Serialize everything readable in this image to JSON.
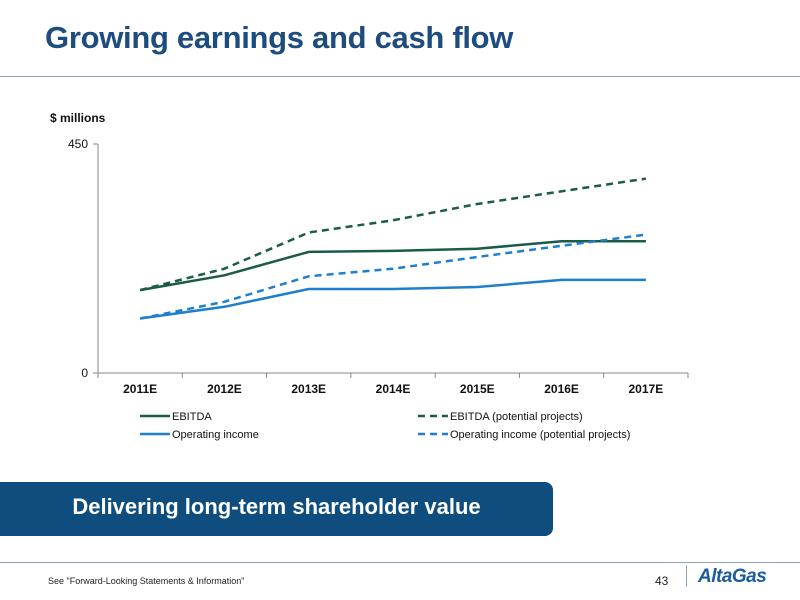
{
  "slide": {
    "title": "Growing earnings and cash flow",
    "banner": "Delivering long-term shareholder value",
    "footer_note": "See \"Forward-Looking Statements & Information\"",
    "page_number": "43",
    "logo_text": "AltaGas"
  },
  "colors": {
    "title": "#1e4c7e",
    "banner_bg": "#0f4d7e",
    "ebitda": "#1a5c48",
    "operating_income": "#1f7fcf"
  },
  "chart_data": {
    "type": "line",
    "unit_label": "$ millions",
    "categories": [
      "2011E",
      "2012E",
      "2013E",
      "2014E",
      "2015E",
      "2016E",
      "2017E"
    ],
    "ylim": [
      0,
      450
    ],
    "yticks": [
      "0",
      "450"
    ],
    "grid": false,
    "legend_position": "bottom",
    "series": [
      {
        "name": "EBITDA",
        "values": [
          163,
          192,
          238,
          240,
          244,
          259,
          259
        ],
        "color": "#1a5c48",
        "dash": false
      },
      {
        "name": "EBITDA (potential projects)",
        "values": [
          163,
          205,
          276,
          300,
          332,
          357,
          382
        ],
        "color": "#1a5c48",
        "dash": true
      },
      {
        "name": "Operating income",
        "values": [
          107,
          130,
          165,
          165,
          169,
          183,
          183
        ],
        "color": "#1f7fcf",
        "dash": false
      },
      {
        "name": "Operating income (potential projects)",
        "values": [
          107,
          140,
          190,
          205,
          228,
          250,
          272
        ],
        "color": "#1f7fcf",
        "dash": true
      }
    ]
  }
}
